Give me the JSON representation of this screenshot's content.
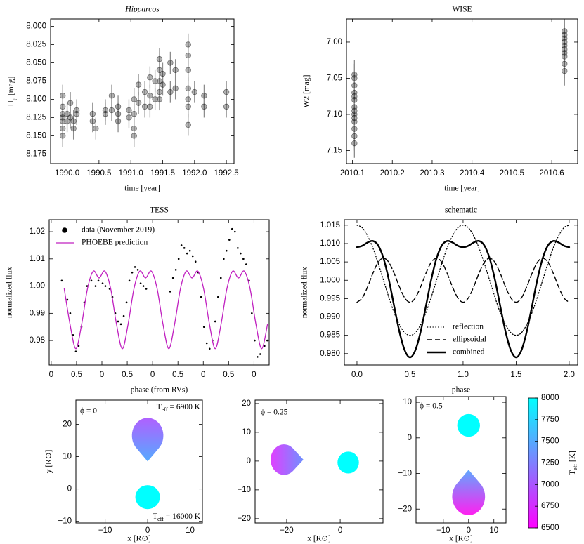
{
  "chart_data": [
    {
      "type": "scatter",
      "title": "Hipparcos",
      "title_style": "italic",
      "x_label": "time [year]",
      "y_label": [
        "H",
        "p",
        " [mag]"
      ],
      "xlim": [
        1989.74,
        1992.62
      ],
      "xticks": [
        {
          "value": 1990,
          "label": "1990.0"
        },
        1990.5,
        {
          "value": 1991,
          "label": "1991.0"
        },
        1991.5,
        {
          "value": 1992,
          "label": "1992.0"
        },
        1992.5
      ],
      "ylim": [
        7.99,
        8.188
      ],
      "invert_y": true,
      "yticks": [
        {
          "value": 8,
          "label": "8.000"
        },
        8.025,
        {
          "value": 8.05,
          "label": "8.050"
        },
        8.075,
        {
          "value": 8.1,
          "label": "8.100"
        },
        8.125,
        {
          "value": 8.15,
          "label": "8.150"
        },
        8.175
      ],
      "series": [
        {
          "color": "#000000",
          "alpha": 0.3,
          "yerr": 0.015,
          "x": [
            1989.93,
            1989.93,
            1989.93,
            1989.93,
            1989.93,
            1989.93,
            1989.93,
            1990,
            1990,
            1990.05,
            1990.05,
            1990.1,
            1990.1,
            1990.15,
            1990.15,
            1990.4,
            1990.4,
            1990.45,
            1990.6,
            1990.6,
            1990.7,
            1990.7,
            1990.8,
            1990.8,
            1990.8,
            1990.97,
            1990.97,
            1991.05,
            1991.05,
            1991.05,
            1991.05,
            1991.12,
            1991.12,
            1991.22,
            1991.22,
            1991.3,
            1991.3,
            1991.3,
            1991.38,
            1991.38,
            1991.45,
            1991.45,
            1991.45,
            1991.45,
            1991.45,
            1991.5,
            1991.5,
            1991.62,
            1991.62,
            1991.7,
            1991.7,
            1991.9,
            1991.9,
            1991.9,
            1991.9,
            1991.9,
            1991.9,
            1991.9,
            1992,
            1992.15,
            1992.15,
            1992.5,
            1992.5
          ],
          "values": [
            8.095,
            8.11,
            8.125,
            8.13,
            8.14,
            8.15,
            8.12,
            8.13,
            8.12,
            8.105,
            8.125,
            8.13,
            8.14,
            8.115,
            8.12,
            8.12,
            8.13,
            8.14,
            8.12,
            8.115,
            8.115,
            8.095,
            8.11,
            8.13,
            8.12,
            8.115,
            8.125,
            8.1,
            8.14,
            8.15,
            8.12,
            8.08,
            8.105,
            8.09,
            8.11,
            8.07,
            8.095,
            8.11,
            8.075,
            8.1,
            8.045,
            8.06,
            8.075,
            8.09,
            8.1,
            8.065,
            8.08,
            8.05,
            8.09,
            8.06,
            8.085,
            8.025,
            8.04,
            8.06,
            8.085,
            8.1,
            8.11,
            8.135,
            8.09,
            8.095,
            8.11,
            8.09,
            8.11
          ]
        }
      ]
    },
    {
      "type": "scatter",
      "title": "WISE",
      "x_label": "time [year]",
      "y_label": "W2 [mag]",
      "xlim": [
        2010.085,
        2010.665
      ],
      "xticks": [
        2010.1,
        2010.2,
        2010.3,
        2010.4,
        2010.5,
        2010.6
      ],
      "ylim": [
        6.968,
        7.168
      ],
      "invert_y": true,
      "yticks": [
        {
          "value": 7,
          "label": "7.00"
        },
        7.05,
        {
          "value": 7.1,
          "label": "7.10"
        },
        7.15
      ],
      "series": [
        {
          "color": "#000000",
          "alpha": 0.3,
          "yerr": 0.02,
          "x": [
            2010.105,
            2010.105,
            2010.105,
            2010.105,
            2010.105,
            2010.105,
            2010.105,
            2010.105,
            2010.105,
            2010.105,
            2010.105,
            2010.105,
            2010.105,
            2010.105,
            2010.632,
            2010.632,
            2010.632,
            2010.632,
            2010.632,
            2010.632,
            2010.632,
            2010.632,
            2010.632,
            2010.632
          ],
          "values": [
            7.045,
            7.05,
            7.06,
            7.07,
            7.075,
            7.08,
            7.09,
            7.095,
            7.1,
            7.105,
            7.11,
            7.12,
            7.13,
            7.14,
            6.985,
            6.99,
            6.995,
            7.0,
            7.005,
            7.01,
            7.015,
            7.02,
            7.03,
            7.04
          ]
        }
      ]
    },
    {
      "type": "line",
      "title": "TESS",
      "x_label": "phase (from RVs)",
      "y_label": "normalized flux",
      "legend": "upper left",
      "xlim": [
        -0.04,
        4.3
      ],
      "xticks": [
        0,
        0.5,
        {
          "value": 1,
          "label": "0"
        },
        {
          "value": 1.5,
          "label": "0.5"
        },
        {
          "value": 2,
          "label": "0"
        },
        {
          "value": 2.5,
          "label": "0.5"
        },
        {
          "value": 3,
          "label": "0"
        },
        {
          "value": 3.5,
          "label": "0.5"
        },
        {
          "value": 4,
          "label": "0"
        }
      ],
      "ylim": [
        0.971,
        1.0244
      ],
      "yticks": [
        0.98,
        0.99,
        {
          "value": 1,
          "label": "1.00"
        },
        1.01,
        1.02
      ],
      "series": [
        {
          "name": "data (November 2019)",
          "color": "#000000",
          "style": "points",
          "x": [
            0.208,
            0.319,
            0.375,
            0.431,
            0.486,
            0.542,
            0.597,
            0.653,
            0.708,
            0.792,
            0.875,
            0.931,
            1.014,
            1.069,
            1.153,
            1.208,
            1.264,
            1.319,
            1.375,
            1.431,
            1.486,
            1.542,
            1.597,
            1.653,
            1.708,
            1.764,
            1.819,
            1.875,
            2.347,
            2.403,
            2.458,
            2.514,
            2.569,
            2.625,
            2.681,
            2.736,
            2.792,
            2.847,
            2.903,
            2.958,
            3.014,
            3.069,
            3.125,
            3.181,
            3.236,
            3.292,
            3.347,
            3.403,
            3.458,
            3.514,
            3.569,
            3.625,
            3.681,
            3.736,
            3.792,
            3.847,
            3.903,
            3.958,
            4.014,
            4.069,
            4.125,
            4.208,
            4.264
          ],
          "values": [
            1.002,
            0.995,
            0.99,
            0.982,
            0.976,
            0.978,
            0.985,
            0.994,
            1.0,
            1.002,
            1.0,
            1.002,
            1.001,
            1.0,
            0.999,
            0.996,
            0.99,
            0.987,
            0.986,
            0.989,
            0.994,
            1.002,
            1.005,
            1.007,
            1.006,
            1.001,
            1.0,
            0.999,
            0.998,
            1.003,
            1.006,
            1.01,
            1.015,
            1.014,
            1.012,
            1.013,
            1.011,
            1.009,
            1.005,
            0.996,
            0.985,
            0.979,
            0.977,
            0.98,
            0.987,
            0.996,
            1.003,
            1.01,
            1.013,
            1.017,
            1.021,
            1.02,
            1.014,
            1.012,
            1.01,
            1.008,
            1.002,
            0.99,
            0.98,
            0.974,
            0.975,
            0.978,
            0.98
          ]
        },
        {
          "name": "PHOEBE prediction",
          "color": "#c020c0",
          "style": "solid",
          "x": [
            0.257,
            0.371,
            0.486,
            0.601,
            0.715,
            0.83,
            0.944,
            1.059,
            1.174,
            1.288,
            1.403,
            1.517,
            1.632,
            1.747,
            1.861,
            1.976,
            2.09,
            2.205,
            2.32,
            2.434,
            2.549,
            2.663,
            2.778,
            2.893,
            3.007,
            3.122,
            3.236,
            3.351,
            3.466,
            3.58,
            3.695,
            3.809,
            3.924,
            4.039,
            4.153,
            4.268
          ],
          "values": [
            0.999,
            0.986,
            0.977,
            0.986,
            0.999,
            1.0055,
            1.003,
            1.0055,
            0.999,
            0.986,
            0.977,
            0.986,
            0.999,
            1.0055,
            1.003,
            1.0055,
            0.999,
            0.986,
            0.977,
            0.986,
            0.999,
            1.0055,
            1.003,
            1.0055,
            0.999,
            0.986,
            0.977,
            0.986,
            0.999,
            1.0055,
            1.003,
            1.0055,
            0.999,
            0.986,
            0.977,
            0.986
          ]
        }
      ]
    },
    {
      "type": "line",
      "title": "schematic",
      "x_label": "phase",
      "y_label": "normalized flux",
      "legend": "lower right",
      "xlim": [
        -0.119,
        2.08
      ],
      "xticks": [
        {
          "value": 0,
          "label": "0.0"
        },
        0.5,
        {
          "value": 1,
          "label": "1.0"
        },
        1.5,
        {
          "value": 2,
          "label": "2.0"
        }
      ],
      "ylim": [
        0.9769,
        1.0165
      ],
      "yticks": [
        {
          "value": 0.98,
          "label": "0.980"
        },
        0.985,
        {
          "value": 0.99,
          "label": "0.990"
        },
        0.995,
        {
          "value": 1,
          "label": "1.000"
        },
        1.005,
        {
          "value": 1.01,
          "label": "1.010"
        },
        1.015
      ],
      "x": [
        0,
        0.05,
        0.1,
        0.15,
        0.2,
        0.25,
        0.3,
        0.35,
        0.4,
        0.45,
        0.5,
        0.55,
        0.6,
        0.65,
        0.7,
        0.75,
        0.8,
        0.85,
        0.9,
        0.95,
        1,
        1.05,
        1.1,
        1.15,
        1.2,
        1.25,
        1.3,
        1.35,
        1.4,
        1.45,
        1.5,
        1.55,
        1.6,
        1.65,
        1.7,
        1.75,
        1.8,
        1.85,
        1.9,
        1.95,
        2
      ],
      "series": [
        {
          "name": "reflection",
          "color": "#000000",
          "style": "dotted",
          "values": [
            1.015,
            1.0143,
            1.0121,
            1.0088,
            1.0046,
            1.0,
            0.9954,
            0.9912,
            0.9879,
            0.9857,
            0.985,
            0.9857,
            0.9879,
            0.9912,
            0.9954,
            1.0,
            1.0046,
            1.0088,
            1.0121,
            1.0143,
            1.015,
            1.0143,
            1.0121,
            1.0088,
            1.0046,
            1.0,
            0.9954,
            0.9912,
            0.9879,
            0.9857,
            0.985,
            0.9857,
            0.9879,
            0.9912,
            0.9954,
            1.0,
            1.0046,
            1.0088,
            1.0121,
            1.0143,
            1.015
          ]
        },
        {
          "name": "ellipsoidal",
          "color": "#000000",
          "style": "dashed",
          "values": [
            0.994,
            0.9952,
            0.9982,
            1.0019,
            1.0049,
            1.006,
            1.0049,
            1.0019,
            0.9982,
            0.9952,
            0.994,
            0.9952,
            0.9982,
            1.0019,
            1.0049,
            1.006,
            1.0049,
            1.0019,
            0.9982,
            0.9952,
            0.994,
            0.9952,
            0.9982,
            1.0019,
            1.0049,
            1.006,
            1.0049,
            1.0019,
            0.9982,
            0.9952,
            0.994,
            0.9952,
            0.9982,
            1.0019,
            1.0049,
            1.006,
            1.0049,
            1.0019,
            0.9982,
            0.9952,
            0.994
          ]
        },
        {
          "name": "combined",
          "color": "#000000",
          "style": "thick",
          "values": [
            1.009,
            1.0094,
            1.0103,
            1.0107,
            1.0095,
            1.006,
            1.0002,
            0.993,
            0.986,
            0.9809,
            0.979,
            0.9809,
            0.986,
            0.993,
            1.0002,
            1.006,
            1.0095,
            1.0107,
            1.0103,
            1.0094,
            1.009,
            1.0094,
            1.0103,
            1.0107,
            1.0095,
            1.006,
            1.0002,
            0.993,
            0.986,
            0.9809,
            0.979,
            0.9809,
            0.986,
            0.993,
            1.0002,
            1.006,
            1.0095,
            1.0107,
            1.0103,
            1.0094,
            1.009
          ]
        }
      ]
    },
    {
      "type": "mesh",
      "x_label": "x [R⊙]",
      "y_label": "y [R⊙]",
      "xlim": [
        -16.9,
        12.9
      ],
      "xticks": [
        {
          "value": -10,
          "label": "−10"
        },
        0,
        10
      ],
      "ylim": [
        -10.5,
        27.5
      ],
      "yticks": [
        {
          "value": -10,
          "label": "−10"
        },
        0,
        10,
        20
      ],
      "annotations": [
        "ϕ = 0",
        [
          "T",
          "eff",
          " = 6900 K"
        ],
        [
          "T",
          "eff",
          " = 16000 K"
        ]
      ],
      "stars": [
        {
          "x": 0,
          "y": 16.5,
          "rx": 3.7,
          "ry": 5.5,
          "tip": "down",
          "colors": [
            "#b060ff",
            "#55aaff"
          ]
        },
        {
          "x": 0,
          "y": -2.5,
          "rx": 2.9,
          "ry": 3.7,
          "colors": [
            "#00ffff",
            "#00ffff"
          ]
        }
      ]
    },
    {
      "type": "mesh",
      "x_label": "x [R⊙]",
      "xlim": [
        -31.8,
        16
      ],
      "xticks": [
        {
          "value": -20,
          "label": "−20"
        },
        0
      ],
      "ylim": [
        -21.5,
        21.2
      ],
      "yticks": [
        {
          "value": -20,
          "label": "−20"
        },
        {
          "value": -10,
          "label": "−10"
        },
        0,
        10,
        20
      ],
      "annotations": [
        "ϕ = 0.25"
      ],
      "stars": [
        {
          "x": -21,
          "y": 0.5,
          "rx": 5,
          "ry": 5.3,
          "tip": "right",
          "colors": [
            "#e040ff",
            "#7090ff"
          ]
        },
        {
          "x": 3,
          "y": -0.5,
          "rx": 4,
          "ry": 3.8,
          "colors": [
            "#00ffff",
            "#00ffff"
          ]
        }
      ]
    },
    {
      "type": "mesh",
      "x_label": "x [R⊙]",
      "xlim": [
        -20.8,
        14.8
      ],
      "xticks": [
        {
          "value": -10,
          "label": "−10"
        },
        0,
        10
      ],
      "ylim": [
        -23.9,
        11.6
      ],
      "yticks": [
        {
          "value": -20,
          "label": "−20"
        },
        {
          "value": -10,
          "label": "−10"
        },
        0,
        10
      ],
      "annotations": [
        "ϕ = 0.5"
      ],
      "stars": [
        {
          "x": 0,
          "y": 3.5,
          "rx": 4.5,
          "ry": 3.2,
          "colors": [
            "#00ffff",
            "#00ffff"
          ]
        },
        {
          "x": 0,
          "y": -16.5,
          "rx": 6.5,
          "ry": 5.2,
          "tip": "up",
          "colors": [
            "#ff20f0",
            "#60a8ff"
          ]
        }
      ]
    },
    {
      "type": "colorbar",
      "label": [
        "T",
        "eff",
        " [K]"
      ],
      "clim": [
        6500,
        8000
      ],
      "ticks": [
        6500,
        6750,
        7000,
        7250,
        7500,
        7750,
        8000
      ],
      "colors": [
        "#ff00ff",
        "#00ffff"
      ]
    }
  ]
}
